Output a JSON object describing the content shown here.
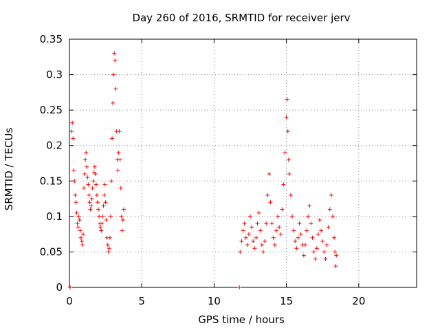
{
  "chart_data": {
    "type": "scatter",
    "title": "Day 260 of 2016, SRMTID for receiver jerv",
    "xlabel": "GPS time / hours",
    "ylabel": "SRMTID / TECUs",
    "xlim": [
      0,
      24
    ],
    "ylim": [
      0,
      0.35
    ],
    "x_ticks": [
      0,
      5,
      10,
      15,
      20
    ],
    "x_tick_labels": [
      "0",
      "5",
      "10",
      "15",
      "20"
    ],
    "y_ticks": [
      0,
      0.05,
      0.1,
      0.15,
      0.2,
      0.25,
      0.3,
      0.35
    ],
    "y_tick_labels": [
      "0",
      "0.05",
      "0.1",
      "0.15",
      "0.2",
      "0.25",
      "0.3",
      "0.35"
    ],
    "grid": true,
    "marker": "+",
    "series": [
      {
        "name": "SRMTID",
        "color": "#ff0000",
        "points": [
          [
            0.05,
            0.0
          ],
          [
            11.75,
            0.0
          ],
          [
            0.15,
            0.22
          ],
          [
            0.2,
            0.232
          ],
          [
            0.25,
            0.21
          ],
          [
            0.3,
            0.165
          ],
          [
            0.35,
            0.15
          ],
          [
            0.4,
            0.13
          ],
          [
            0.45,
            0.12
          ],
          [
            0.5,
            0.105
          ],
          [
            0.55,
            0.09
          ],
          [
            0.6,
            0.085
          ],
          [
            0.65,
            0.1
          ],
          [
            0.7,
            0.095
          ],
          [
            0.75,
            0.08
          ],
          [
            0.8,
            0.07
          ],
          [
            0.85,
            0.065
          ],
          [
            0.9,
            0.06
          ],
          [
            0.95,
            0.075
          ],
          [
            1.0,
            0.14
          ],
          [
            1.05,
            0.16
          ],
          [
            1.1,
            0.18
          ],
          [
            1.15,
            0.19
          ],
          [
            1.2,
            0.17
          ],
          [
            1.25,
            0.155
          ],
          [
            1.3,
            0.145
          ],
          [
            1.35,
            0.13
          ],
          [
            1.4,
            0.12
          ],
          [
            1.45,
            0.11
          ],
          [
            1.5,
            0.115
          ],
          [
            1.55,
            0.125
          ],
          [
            1.6,
            0.14
          ],
          [
            1.65,
            0.15
          ],
          [
            1.7,
            0.162
          ],
          [
            1.75,
            0.17
          ],
          [
            1.8,
            0.16
          ],
          [
            1.85,
            0.145
          ],
          [
            1.9,
            0.13
          ],
          [
            1.95,
            0.12
          ],
          [
            2.0,
            0.11
          ],
          [
            2.05,
            0.1
          ],
          [
            2.1,
            0.09
          ],
          [
            2.15,
            0.085
          ],
          [
            2.2,
            0.08
          ],
          [
            2.25,
            0.09
          ],
          [
            2.3,
            0.1
          ],
          [
            2.35,
            0.115
          ],
          [
            2.4,
            0.13
          ],
          [
            2.45,
            0.145
          ],
          [
            2.5,
            0.12
          ],
          [
            2.55,
            0.095
          ],
          [
            2.6,
            0.07
          ],
          [
            2.65,
            0.06
          ],
          [
            2.7,
            0.05
          ],
          [
            2.75,
            0.055
          ],
          [
            2.8,
            0.07
          ],
          [
            2.85,
            0.1
          ],
          [
            2.9,
            0.15
          ],
          [
            2.95,
            0.21
          ],
          [
            3.0,
            0.26
          ],
          [
            3.05,
            0.3
          ],
          [
            3.1,
            0.33
          ],
          [
            3.15,
            0.32
          ],
          [
            3.2,
            0.28
          ],
          [
            3.25,
            0.22
          ],
          [
            3.3,
            0.18
          ],
          [
            3.35,
            0.165
          ],
          [
            3.4,
            0.19
          ],
          [
            3.45,
            0.22
          ],
          [
            3.5,
            0.18
          ],
          [
            3.55,
            0.14
          ],
          [
            3.6,
            0.1
          ],
          [
            3.65,
            0.08
          ],
          [
            3.7,
            0.095
          ],
          [
            3.75,
            0.11
          ],
          [
            11.8,
            0.05
          ],
          [
            11.9,
            0.065
          ],
          [
            12.0,
            0.08
          ],
          [
            12.1,
            0.09
          ],
          [
            12.2,
            0.07
          ],
          [
            12.3,
            0.06
          ],
          [
            12.4,
            0.075
          ],
          [
            12.5,
            0.1
          ],
          [
            12.6,
            0.085
          ],
          [
            12.7,
            0.065
          ],
          [
            12.8,
            0.055
          ],
          [
            12.9,
            0.07
          ],
          [
            13.0,
            0.09
          ],
          [
            13.1,
            0.105
          ],
          [
            13.2,
            0.08
          ],
          [
            13.3,
            0.06
          ],
          [
            13.4,
            0.05
          ],
          [
            13.5,
            0.065
          ],
          [
            13.6,
            0.09
          ],
          [
            13.7,
            0.13
          ],
          [
            13.8,
            0.16
          ],
          [
            13.9,
            0.12
          ],
          [
            14.0,
            0.09
          ],
          [
            14.1,
            0.07
          ],
          [
            14.2,
            0.06
          ],
          [
            14.3,
            0.08
          ],
          [
            14.4,
            0.1
          ],
          [
            14.5,
            0.085
          ],
          [
            14.6,
            0.075
          ],
          [
            14.7,
            0.11
          ],
          [
            14.8,
            0.145
          ],
          [
            14.9,
            0.19
          ],
          [
            15.0,
            0.24
          ],
          [
            15.05,
            0.265
          ],
          [
            15.1,
            0.22
          ],
          [
            15.15,
            0.18
          ],
          [
            15.2,
            0.16
          ],
          [
            15.3,
            0.13
          ],
          [
            15.4,
            0.1
          ],
          [
            15.5,
            0.08
          ],
          [
            15.6,
            0.065
          ],
          [
            15.7,
            0.055
          ],
          [
            15.8,
            0.07
          ],
          [
            15.9,
            0.09
          ],
          [
            16.0,
            0.075
          ],
          [
            16.1,
            0.06
          ],
          [
            16.2,
            0.045
          ],
          [
            16.3,
            0.06
          ],
          [
            16.4,
            0.08
          ],
          [
            16.5,
            0.1
          ],
          [
            16.6,
            0.115
          ],
          [
            16.7,
            0.09
          ],
          [
            16.8,
            0.07
          ],
          [
            16.9,
            0.05
          ],
          [
            17.0,
            0.04
          ],
          [
            17.1,
            0.055
          ],
          [
            17.2,
            0.075
          ],
          [
            17.3,
            0.095
          ],
          [
            17.4,
            0.08
          ],
          [
            17.5,
            0.065
          ],
          [
            17.6,
            0.05
          ],
          [
            17.7,
            0.04
          ],
          [
            17.8,
            0.06
          ],
          [
            17.9,
            0.085
          ],
          [
            18.0,
            0.11
          ],
          [
            18.1,
            0.13
          ],
          [
            18.2,
            0.1
          ],
          [
            18.3,
            0.07
          ],
          [
            18.35,
            0.05
          ],
          [
            18.4,
            0.03
          ],
          [
            18.45,
            0.045
          ]
        ]
      }
    ]
  }
}
